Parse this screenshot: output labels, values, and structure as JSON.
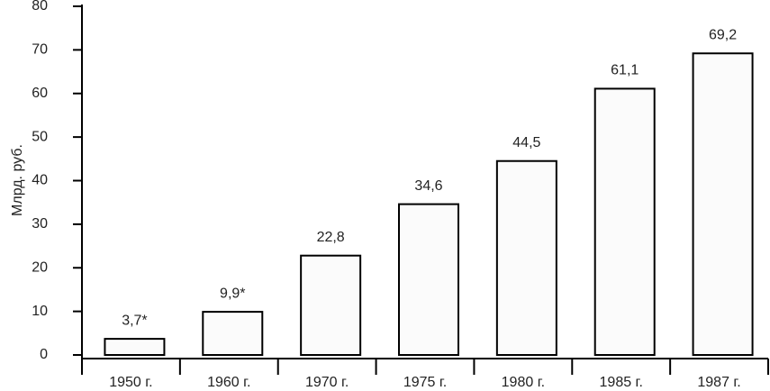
{
  "chart_data": {
    "type": "bar",
    "y_label": "Млрд. руб.",
    "categories": [
      "1950 г.",
      "1960 г.",
      "1970 г.",
      "1975 г.",
      "1980 г.",
      "1985 г.",
      "1987 г."
    ],
    "values": [
      3.7,
      9.9,
      22.8,
      34.6,
      44.5,
      61.1,
      69.2
    ],
    "value_labels": [
      "3,7*",
      "9,9*",
      "22,8",
      "34,6",
      "44,5",
      "61,1",
      "69,2"
    ],
    "color": "#fbfbfb",
    "ylim": [
      0,
      80
    ],
    "yticks": [
      0,
      10,
      20,
      30,
      40,
      50,
      60,
      70,
      80
    ],
    "grid": false
  }
}
